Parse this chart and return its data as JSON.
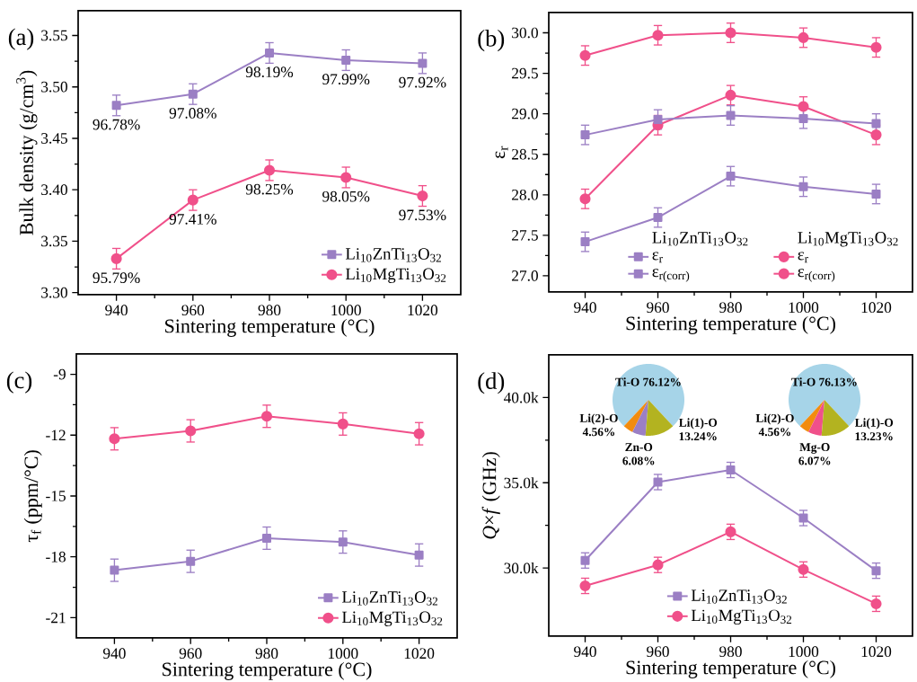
{
  "chart_data": [
    {
      "type": "line",
      "title": "(a)",
      "xlabel": "Sintering temperature (°C)",
      "ylabel": "Bulk density (g/cm$^{3}$)",
      "legend": "bottom right",
      "xlim": [
        930,
        1030
      ],
      "xticks": [
        940,
        960,
        980,
        1000,
        1020
      ],
      "ylim": [
        3.298,
        3.574
      ],
      "yticks": [
        {
          "value": 3.3,
          "label": "3.30"
        },
        {
          "value": 3.35,
          "label": "3.35"
        },
        {
          "value": 3.4,
          "label": "3.40"
        },
        {
          "value": 3.45,
          "label": "3.45"
        },
        {
          "value": 3.5,
          "label": "3.50"
        },
        {
          "value": 3.55,
          "label": "3.55"
        }
      ],
      "x": [
        940,
        960,
        980,
        1000,
        1020
      ],
      "series": [
        {
          "name": "Li$_{10}$ZnTi$_{13}$O$_{32}$",
          "color": "#9b7fc4",
          "marker": "square",
          "values": [
            3.482,
            3.493,
            3.533,
            3.526,
            3.523
          ],
          "errors": [
            0.01,
            0.01,
            0.01,
            0.01,
            0.01
          ]
        },
        {
          "name": "Li$_{10}$MgTi$_{13}$O$_{32}$",
          "color": "#f0508a",
          "marker": "circle",
          "values": [
            3.333,
            3.39,
            3.419,
            3.412,
            3.394
          ],
          "errors": [
            0.01,
            0.01,
            0.01,
            0.01,
            0.01
          ]
        }
      ],
      "annotations": [
        {
          "text": "96.78%",
          "x": 940,
          "y": 3.482
        },
        {
          "text": "97.08%",
          "x": 960,
          "y": 3.493
        },
        {
          "text": "98.19%",
          "x": 980,
          "y": 3.533
        },
        {
          "text": "97.99%",
          "x": 1000,
          "y": 3.526
        },
        {
          "text": "97.92%",
          "x": 1020,
          "y": 3.523
        },
        {
          "text": "95.79%",
          "x": 940,
          "y": 3.333
        },
        {
          "text": "97.41%",
          "x": 960,
          "y": 3.39
        },
        {
          "text": "98.25%",
          "x": 980,
          "y": 3.419
        },
        {
          "text": "98.05%",
          "x": 1000,
          "y": 3.412
        },
        {
          "text": "97.53%",
          "x": 1020,
          "y": 3.394
        }
      ]
    },
    {
      "type": "line",
      "title": "(b)",
      "xlabel": "Sintering temperature (°C)",
      "ylabel": "ε$_{r}$",
      "legend": "bottom right",
      "xlim": [
        930,
        1030
      ],
      "xticks": [
        940,
        960,
        980,
        1000,
        1020
      ],
      "ylim": [
        26.8,
        30.25
      ],
      "yticks": [
        {
          "value": 27,
          "label": "27.0"
        },
        {
          "value": 27.5,
          "label": "27.5"
        },
        {
          "value": 28,
          "label": "28.0"
        },
        {
          "value": 28.5,
          "label": "28.5"
        },
        {
          "value": 29,
          "label": "29.0"
        },
        {
          "value": 29.5,
          "label": "29.5"
        },
        {
          "value": 30,
          "label": "30.0"
        }
      ],
      "x": [
        940,
        960,
        980,
        1000,
        1020
      ],
      "series": [
        {
          "name": "ε$_{r}$",
          "color": "#9b7fc4",
          "marker": "square",
          "values": [
            27.42,
            27.72,
            28.23,
            28.1,
            28.01
          ],
          "errors": [
            0.12,
            0.12,
            0.12,
            0.12,
            0.12
          ]
        },
        {
          "name": "ε$_{r}$",
          "color": "#f0508a",
          "marker": "circle",
          "values": [
            27.95,
            28.86,
            29.23,
            29.09,
            28.74
          ],
          "errors": [
            0.12,
            0.12,
            0.12,
            0.12,
            0.12
          ]
        },
        {
          "name": "ε$_{r(corr)}$",
          "color": "#9b7fc4",
          "marker": "square",
          "values": [
            28.74,
            28.93,
            28.98,
            28.94,
            28.88
          ],
          "errors": [
            0.12,
            0.12,
            0.12,
            0.12,
            0.12
          ]
        },
        {
          "name": "ε$_{r(corr)}$",
          "color": "#f0508a",
          "marker": "circle",
          "values": [
            29.72,
            29.97,
            30.0,
            29.94,
            29.82
          ],
          "errors": [
            0.12,
            0.12,
            0.12,
            0.12,
            0.12
          ]
        }
      ],
      "annotations": [
        "Li$_{10}$ZnTi$_{13}$O$_{32}$",
        "Li$_{10}$MgTi$_{13}$O$_{32}$"
      ]
    },
    {
      "type": "line",
      "title": "(c)",
      "xlabel": "Sintering temperature (°C)",
      "ylabel": "τ$_{f}$ (ppm/°C)",
      "legend": "bottom right",
      "xlim": [
        930,
        1030
      ],
      "xticks": [
        940,
        960,
        980,
        1000,
        1020
      ],
      "ylim": [
        -22,
        -8
      ],
      "yticks": [
        -21,
        -18,
        -15,
        -12,
        -9
      ],
      "x": [
        940,
        960,
        980,
        1000,
        1020
      ],
      "series": [
        {
          "name": "Li$_{10}$ZnTi$_{13}$O$_{32}$",
          "color": "#9b7fc4",
          "marker": "square",
          "values": [
            -18.66,
            -18.22,
            -17.08,
            -17.27,
            -17.91
          ],
          "errors": [
            0.55,
            0.55,
            0.55,
            0.55,
            0.55
          ]
        },
        {
          "name": "Li$_{10}$MgTi$_{13}$O$_{32}$",
          "color": "#f0508a",
          "marker": "circle",
          "values": [
            -12.18,
            -11.79,
            -11.07,
            -11.45,
            -11.93
          ],
          "errors": [
            0.55,
            0.55,
            0.55,
            0.55,
            0.55
          ]
        }
      ]
    },
    {
      "type": "line",
      "title": "(d)",
      "xlabel": "Sintering temperature (°C)",
      "ylabel": "*Q*×*f* (GHz)",
      "legend": "bottom",
      "xlim": [
        930,
        1030
      ],
      "xticks": [
        940,
        960,
        980,
        1000,
        1020
      ],
      "ylim": [
        26000,
        42500
      ],
      "yticks": [
        {
          "value": 30000,
          "label": "30.0k"
        },
        {
          "value": 35000,
          "label": "35.0k"
        },
        {
          "value": 40000,
          "label": "40.0k"
        }
      ],
      "x": [
        940,
        960,
        980,
        1000,
        1020
      ],
      "series": [
        {
          "name": "Li$_{10}$ZnTi$_{13}$O$_{32}$",
          "color": "#9b7fc4",
          "marker": "square",
          "values": [
            30440,
            35040,
            35750,
            32930,
            29840
          ],
          "errors": [
            450,
            450,
            450,
            450,
            450
          ]
        },
        {
          "name": "Li$_{10}$MgTi$_{13}$O$_{32}$",
          "color": "#f0508a",
          "marker": "circle",
          "values": [
            28950,
            30180,
            32120,
            29910,
            27900
          ],
          "errors": [
            450,
            450,
            450,
            450,
            450
          ]
        }
      ]
    },
    {
      "type": "pie",
      "categories": [
        "Ti-O",
        "Li(2)-O",
        "Zn-O",
        "Li(1)-O"
      ],
      "values": [
        76.12,
        4.56,
        6.08,
        13.24
      ],
      "colors": [
        "#a6d4e8",
        "#f28c0f",
        "#9b7fc4",
        "#b3b320"
      ],
      "value_labels": [
        "76.12%",
        "4.56%",
        "6.08%",
        "13.24%"
      ]
    },
    {
      "type": "pie",
      "categories": [
        "Ti-O",
        "Li(2)-O",
        "Mg-O",
        "Li(1)-O"
      ],
      "values": [
        76.13,
        4.56,
        6.07,
        13.23
      ],
      "colors": [
        "#a6d4e8",
        "#f28c0f",
        "#f0508a",
        "#b3b320"
      ],
      "value_labels": [
        "76.13%",
        "4.56%",
        "6.07%",
        "13.23%"
      ]
    }
  ]
}
